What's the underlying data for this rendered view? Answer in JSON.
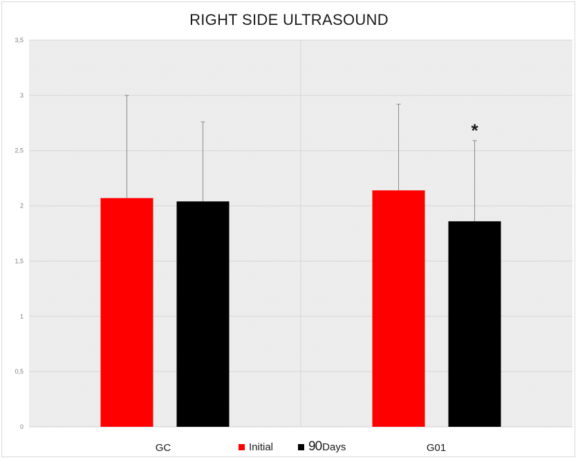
{
  "chart_data": {
    "type": "bar",
    "title": "RIGHT SIDE ULTRASOUND",
    "categories": [
      "GC",
      "G01"
    ],
    "series": [
      {
        "name": "Initial",
        "color": "#ff0000",
        "values": [
          2.07,
          2.14
        ],
        "error_upper": [
          3.0,
          2.92
        ]
      },
      {
        "name": "90 Days",
        "color": "#000000",
        "values": [
          2.04,
          1.86
        ],
        "error_upper": [
          2.76,
          2.59
        ]
      }
    ],
    "ylim": [
      0,
      3.5
    ],
    "y_ticks": [
      "0",
      "0,5",
      "1",
      "1,5",
      "2",
      "2,5",
      "3",
      "3,5"
    ],
    "y_tick_values": [
      0,
      0.5,
      1,
      1.5,
      2,
      2.5,
      3,
      3.5
    ],
    "annotations": [
      {
        "text": "*",
        "category": "G01",
        "series": "90 Days"
      }
    ],
    "grid": true,
    "legend_position": "bottom"
  },
  "legend": {
    "initial_label": "Initial",
    "days_number": "90",
    "days_word": "Days"
  }
}
